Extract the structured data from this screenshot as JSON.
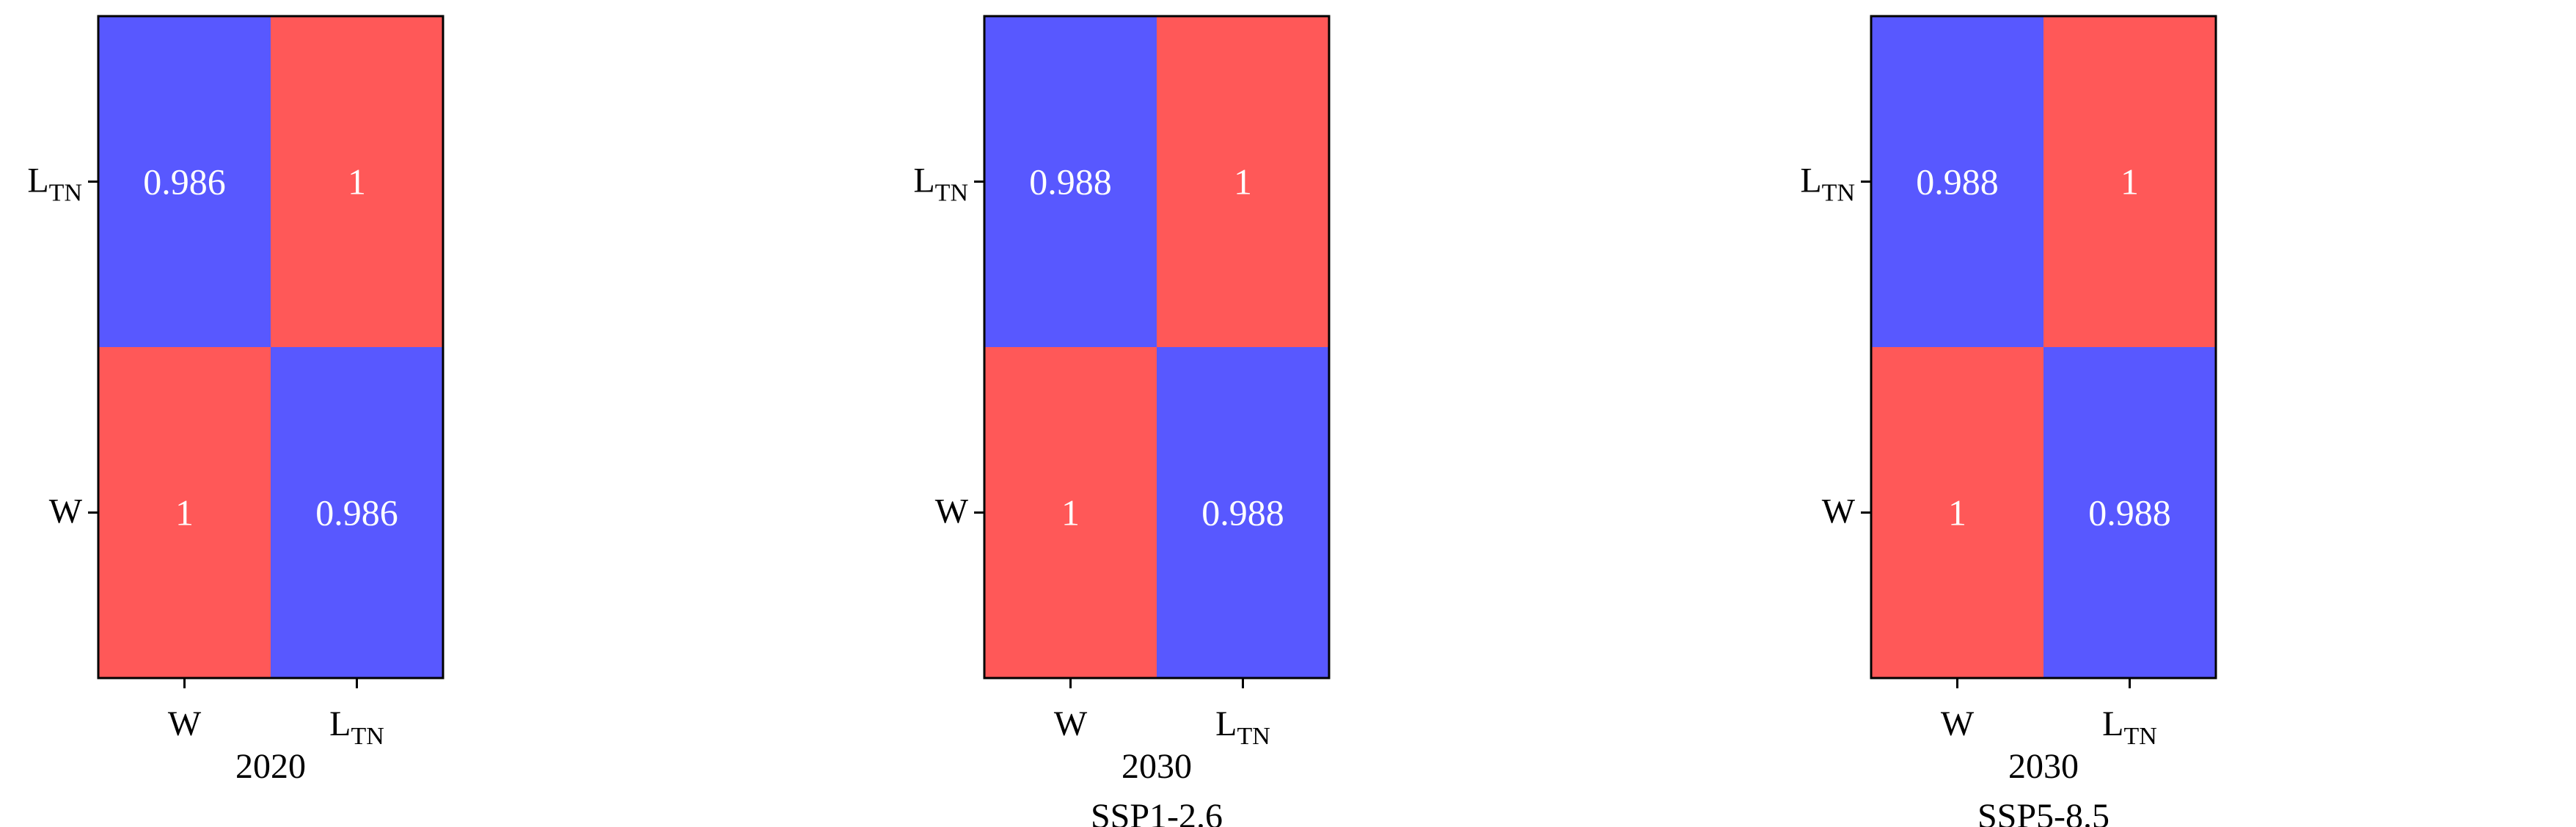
{
  "chart_data": [
    {
      "type": "heatmap",
      "rows": [
        "L|TN",
        "W"
      ],
      "columns": [
        "W",
        "L|TN"
      ],
      "values": [
        [
          0.986,
          1
        ],
        [
          1,
          0.986
        ]
      ],
      "value_labels": [
        [
          "0.986",
          "1"
        ],
        [
          "1",
          "0.986"
        ]
      ],
      "xlabel_lines": [
        "2020"
      ]
    },
    {
      "type": "heatmap",
      "rows": [
        "L|TN",
        "W"
      ],
      "columns": [
        "W",
        "L|TN"
      ],
      "values": [
        [
          0.988,
          1
        ],
        [
          1,
          0.988
        ]
      ],
      "value_labels": [
        [
          "0.988",
          "1"
        ],
        [
          "1",
          "0.988"
        ]
      ],
      "xlabel_lines": [
        "2030",
        "SSP1-2.6"
      ]
    },
    {
      "type": "heatmap",
      "rows": [
        "L|TN",
        "W"
      ],
      "columns": [
        "W",
        "L|TN"
      ],
      "values": [
        [
          0.988,
          1
        ],
        [
          1,
          0.988
        ]
      ],
      "value_labels": [
        [
          "0.988",
          "1"
        ],
        [
          "1",
          "0.988"
        ]
      ],
      "xlabel_lines": [
        "2030",
        "SSP5-8.5"
      ]
    }
  ],
  "colors": {
    "low": "#5858ff",
    "high": "#ff5858",
    "cell_text": "#ffffff",
    "axis": "#000000",
    "text": "#000000"
  }
}
